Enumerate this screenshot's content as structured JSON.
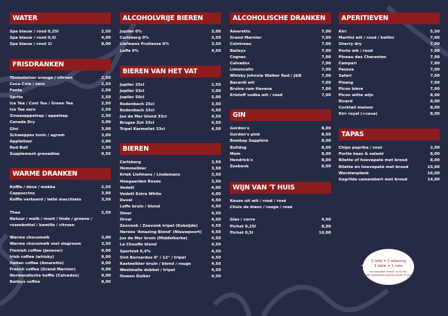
{
  "sections": {
    "water": {
      "title": "WATER",
      "items": [
        [
          "Spa blauw / rood 0,25l",
          "2,50"
        ],
        [
          "Spa blauw / rood 0,5l",
          "4,00"
        ],
        [
          "Spa blauw / rood 1l",
          "8,00"
        ]
      ]
    },
    "frisdranken": {
      "title": "FRISDRANKEN",
      "items": [
        [
          "Tönissteiner orange / citroen",
          "2,50"
        ],
        [
          "Coca-Cola / zero",
          "2,50"
        ],
        [
          "Fanta",
          "2,50"
        ],
        [
          "Sprite",
          "2,50"
        ],
        [
          "Ice Tea / Cool Tea / Green Tea",
          "2,50"
        ],
        [
          "Ice Tea zero",
          "2,50"
        ],
        [
          "Sinaasappelsap / appelsap",
          "2,50"
        ],
        [
          "Canada Dry",
          "3,00"
        ],
        [
          "Gini",
          "3,00"
        ],
        [
          "Schweppes tonic / agrum",
          "3,00"
        ],
        [
          "Appletiser",
          "3,00"
        ],
        [
          "Red Bull",
          "3,50"
        ],
        [
          "Supplement grenadine",
          "0,50"
        ]
      ]
    },
    "warme": {
      "title": "WARME DRANKEN",
      "items": [
        [
          "Koffie / déca / mokka",
          "2,50"
        ],
        [
          "Cappuccino",
          "3,00"
        ],
        [
          "Koffie verkeerd / latté macchiato",
          "3,50"
        ]
      ],
      "thee": [
        "Thee",
        "2,50"
      ],
      "thee_note1": "Natuur / melk / munt / linde / groene /",
      "thee_note2": "rozenbottel / kamille / citroen",
      "items2": [
        [
          "Warme chocomelk",
          "3,00"
        ],
        [
          "Warme chocomelk met slagroom",
          "3,50"
        ],
        [
          "Flemish coffee (jenever)",
          "9,00"
        ],
        [
          "Irish coffee (whisky)",
          "9,00"
        ],
        [
          "Italian coffee (Amaretto)",
          "9,00"
        ],
        [
          "French coffee (Grand Marnier)",
          "9,00"
        ],
        [
          "Normandische koffie (Calvados)",
          "9,00"
        ],
        [
          "Baileys coffee",
          "9,00"
        ]
      ]
    },
    "alcoholvrij": {
      "title": "ALCOHOLVRIJE BIEREN",
      "items": [
        [
          "Jupiler 0%",
          "3,00"
        ],
        [
          "Carlsberg 0%",
          "3,50"
        ],
        [
          "Liefmans Fruitesse 0%",
          "3,50"
        ],
        [
          "Leffe 0%",
          "4,50"
        ]
      ]
    },
    "vat": {
      "title": "BIEREN VAN HET VAT",
      "items": [
        [
          "Jupiler 25cl",
          "2,50"
        ],
        [
          "Jupiler 33cl",
          "3,00"
        ],
        [
          "Jupiler 50cl",
          "5,00"
        ],
        [
          "Rodenbach 25cl",
          "3,50"
        ],
        [
          "Rodenbach 33cl",
          "4,50"
        ],
        [
          "Jus de Mer blond 33cl",
          "4,50"
        ],
        [
          "Brugse Zot 33cl",
          "4,50"
        ],
        [
          "Tripel Karmeliet 33cl",
          "4,50"
        ]
      ]
    },
    "bieren": {
      "title": "BIEREN",
      "items": [
        [
          "Carlsberg",
          "3,50"
        ],
        [
          "Hommelbier",
          "3,50"
        ],
        [
          "Kriek Liefmans / Lindemans",
          "3,50"
        ],
        [
          "Hoegaarden Rosée",
          "3,50"
        ],
        [
          "Vedett",
          "4,00"
        ],
        [
          "Vedett Extra White",
          "4,00"
        ],
        [
          "Duvel",
          "4,50"
        ],
        [
          "Leffe bruin / blond",
          "4,50"
        ],
        [
          "Omer",
          "4,50"
        ],
        [
          "Orval",
          "4,50"
        ],
        [
          "Zeevonk / Zeevonk tripel (Koksijde)",
          "4,50"
        ],
        [
          "Heroes 'Amazing Blond' (Nieuwpoort)",
          "4,50"
        ],
        [
          "Jus de Mer bruin (Middelkerke)",
          "4,50"
        ],
        [
          "La Chouffe blond",
          "4,50"
        ],
        [
          "Sportzot 0,4%",
          "4,50"
        ],
        [
          "Sint Bernardus 8° / 12° / tripel",
          "4,50"
        ],
        [
          "Kasteelbier bruin / blond / rouge",
          "4,50"
        ],
        [
          "Westmalle dubbel / tripel",
          "4,50"
        ],
        [
          "Ouwen Duiker",
          "4,50"
        ]
      ]
    },
    "alcoholisch": {
      "title": "ALCOHOLISCHE DRANKEN",
      "items": [
        [
          "Amaretto",
          "7,00"
        ],
        [
          "Grand Marnier",
          "7,00"
        ],
        [
          "Cointreau",
          "7,00"
        ],
        [
          "Baileys",
          "7,00"
        ],
        [
          "Cognac",
          "7,00"
        ],
        [
          "Calvados",
          "7,00"
        ],
        [
          "Limoncello",
          "7,00"
        ],
        [
          "Whisky Johnnie Walker Red / J&B",
          "7,00"
        ],
        [
          "Bacardi wit",
          "7,00"
        ],
        [
          "Bruine rum Havana",
          "7,00"
        ],
        [
          "Eristoff vodka wit / rood",
          "7,00"
        ]
      ]
    },
    "gin": {
      "title": "GIN",
      "items": [
        [
          "Gordon's",
          "8,00"
        ],
        [
          "Gordon's pink",
          "8,00"
        ],
        [
          "Bombay Sapphire",
          "8,00"
        ],
        [
          "Bulldog",
          "8,00"
        ],
        [
          "Mom",
          "8,00"
        ],
        [
          "Hendrick's",
          "8,00"
        ],
        [
          "Zeebonk",
          "8,00"
        ]
      ]
    },
    "wijn": {
      "title": "WIJN VAN 'T HUIS",
      "note1": "Keuze uit wit / rood / rosé",
      "note2": "Choix de blanc / rouge / rosé",
      "items": [
        [
          "Glas / verre",
          "4,00"
        ],
        [
          "Pichet 0,25l",
          "8,00"
        ],
        [
          "Pichet 0,5l",
          "16,00"
        ]
      ]
    },
    "aperitieven": {
      "title": "APERITIEVEN",
      "items": [
        [
          "Kirr",
          "5,50"
        ],
        [
          "Martini wit / rood / bellini",
          "7,00"
        ],
        [
          "Sherry dry",
          "7,00"
        ],
        [
          "Porto wit / rood",
          "7,00"
        ],
        [
          "Pineau des Charentes",
          "7,00"
        ],
        [
          "Campari",
          "7,00"
        ],
        [
          "Passoa",
          "7,00"
        ],
        [
          "Safari",
          "7,00"
        ],
        [
          "Pisang",
          "7,00"
        ],
        [
          "Picon bière",
          "7,00"
        ],
        [
          "Picon witte wijn",
          "8,00"
        ],
        [
          "Ricard",
          "8,00"
        ],
        [
          "Cocktail maison",
          "8,00"
        ],
        [
          "Kirr royal (+cava)",
          "8,00"
        ]
      ]
    },
    "tapas": {
      "title": "TAPAS",
      "items": [
        [
          "Chips paprika / zout",
          "2,00"
        ],
        [
          "Portie kaas & salami",
          "8,00"
        ],
        [
          "Rilette of hoevepaté met brood",
          "8,00"
        ],
        [
          "Rilette én hoevepaté met brood",
          "15,00"
        ],
        [
          "Worstenplank",
          "16,00"
        ],
        [
          "Gegrilde camembert met brood",
          "14,00"
        ]
      ]
    }
  },
  "bubble": {
    "line1": "1 tafel = 1 rekening",
    "line2": "1 table = 1 note",
    "line3": "uw reservatie vervalt na 15 min.",
    "line4": "votre réservation expirera après 15 min."
  },
  "colors": {
    "background": "#262a45",
    "header": "#8f1d20",
    "rope": "#4a4f6e"
  }
}
